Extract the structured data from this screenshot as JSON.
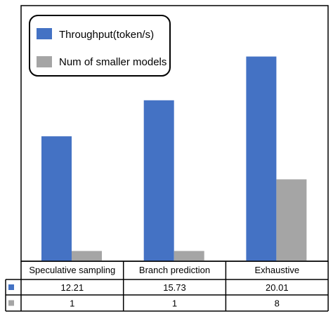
{
  "chart_data": {
    "type": "bar",
    "categories": [
      "Speculative sampling",
      "Branch prediction",
      "Exhaustive"
    ],
    "series": [
      {
        "name": "Throughput(token/s)",
        "values": [
          12.21,
          15.73,
          20.01
        ],
        "color": "#4472C4"
      },
      {
        "name": "Num of smaller models",
        "values": [
          1,
          1,
          8
        ],
        "color": "#A5A5A5"
      }
    ],
    "table": {
      "rows": [
        [
          "12.21",
          "15.73",
          "20.01"
        ],
        [
          "1",
          "1",
          "8"
        ]
      ]
    },
    "legend": {
      "position": "top-left"
    },
    "scale_note": "bars share a single hidden value axis",
    "grid": false
  }
}
